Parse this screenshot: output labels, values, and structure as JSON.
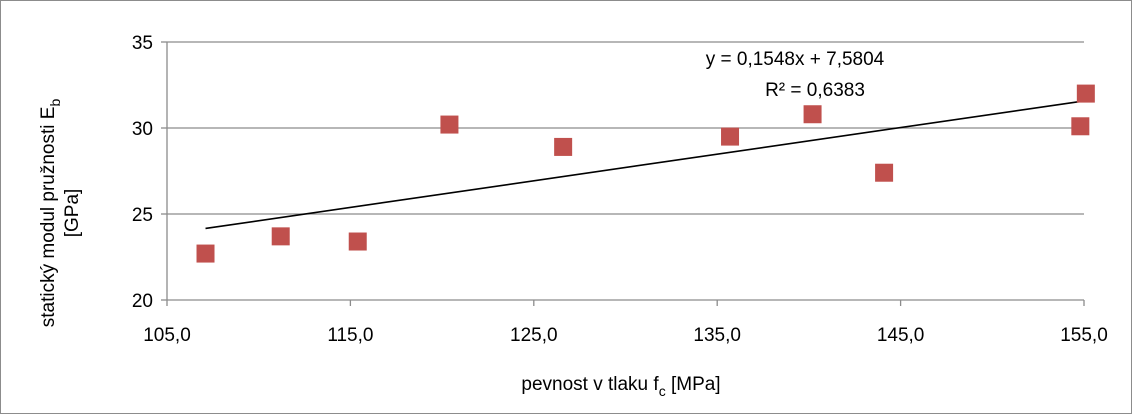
{
  "chart_data": {
    "type": "scatter",
    "xlabel": {
      "main": "pevnost v tlaku f",
      "sub": "c",
      "unit": " [MPa]"
    },
    "ylabel": {
      "line1_main": "statický modul pružnosti E",
      "line1_sub": "b",
      "line2": "[GPa]"
    },
    "xlim": [
      105,
      155
    ],
    "ylim": [
      20,
      35
    ],
    "x_ticks": [
      105,
      115,
      125,
      135,
      145,
      155
    ],
    "x_tick_labels": [
      "105,0",
      "115,0",
      "125,0",
      "135,0",
      "145,0",
      "155,0"
    ],
    "y_ticks": [
      20,
      25,
      30,
      35
    ],
    "y_tick_labels": [
      "20",
      "25",
      "30",
      "35"
    ],
    "grid": {
      "horizontal": true,
      "vertical": false
    },
    "marker": {
      "shape": "square",
      "color": "#C0504D"
    },
    "points": [
      {
        "x": 107.1,
        "y": 22.7
      },
      {
        "x": 111.2,
        "y": 23.7
      },
      {
        "x": 115.4,
        "y": 23.4
      },
      {
        "x": 120.4,
        "y": 30.2
      },
      {
        "x": 126.6,
        "y": 28.9
      },
      {
        "x": 135.7,
        "y": 29.5
      },
      {
        "x": 140.2,
        "y": 30.8
      },
      {
        "x": 144.1,
        "y": 27.4
      },
      {
        "x": 154.8,
        "y": 30.1
      },
      {
        "x": 155.1,
        "y": 32.0
      }
    ],
    "trendline": {
      "slope": 0.1548,
      "intercept": 7.5804,
      "x_range": [
        107.1,
        155.1
      ],
      "equation_label": "y = 0,1548x + 7,5804",
      "r2_label": "R² = 0,6383",
      "color": "#000000"
    }
  }
}
